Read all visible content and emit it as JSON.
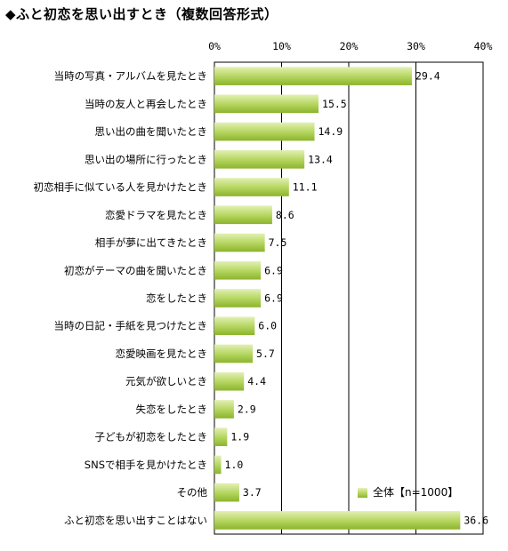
{
  "title": "◆ふと初恋を思い出すとき（複数回答形式）",
  "chart_data": {
    "type": "bar",
    "orientation": "horizontal",
    "categories": [
      "当時の写真・アルバムを見たとき",
      "当時の友人と再会したとき",
      "思い出の曲を聞いたとき",
      "思い出の場所に行ったとき",
      "初恋相手に似ている人を見かけたとき",
      "恋愛ドラマを見たとき",
      "相手が夢に出てきたとき",
      "初恋がテーマの曲を聞いたとき",
      "恋をしたとき",
      "当時の日記・手紙を見つけたとき",
      "恋愛映画を見たとき",
      "元気が欲しいとき",
      "失恋をしたとき",
      "子どもが初恋をしたとき",
      "SNSで相手を見かけたとき",
      "その他",
      "ふと初恋を思い出すことはない"
    ],
    "series": [
      {
        "name": "全体【n=1000】",
        "values": [
          29.4,
          15.5,
          14.9,
          13.4,
          11.1,
          8.6,
          7.5,
          6.9,
          6.9,
          6.0,
          5.7,
          4.4,
          2.9,
          1.9,
          1.0,
          3.7,
          36.6
        ],
        "labels": [
          "29.4",
          "15.5",
          "14.9",
          "13.4",
          "11.1",
          "8.6",
          "7.5",
          "6.9",
          "6.9",
          "6.0",
          "5.7",
          "4.4",
          "2.9",
          "1.9",
          "1.0",
          "3.7",
          "36.6"
        ]
      }
    ],
    "xlim": [
      0,
      40
    ],
    "ticks": [
      0,
      10,
      20,
      30,
      40
    ],
    "tick_labels": [
      "0%",
      "10%",
      "20%",
      "30%",
      "40%"
    ],
    "grid": true,
    "legend_position": "bottom-right",
    "colors": {
      "bar_light": "#e3f0b4",
      "bar_mid": "#b7d763",
      "bar_dark": "#8cb42c",
      "axis": "#000000"
    }
  }
}
